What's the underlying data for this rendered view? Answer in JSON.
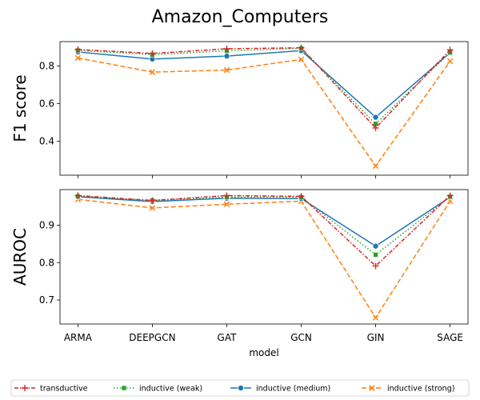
{
  "chart_data": {
    "type": "line",
    "title": "Amazon_Computers",
    "xlabel": "model",
    "categories": [
      "ARMA",
      "DEEPGCN",
      "GAT",
      "GCN",
      "GIN",
      "SAGE"
    ],
    "legend": {
      "placement": "bottom",
      "entries": [
        "transductive",
        "inductive (weak)",
        "inductive (medium)",
        "inductive (strong)"
      ]
    },
    "series_styles": [
      {
        "name": "transductive",
        "color": "#d62728",
        "dash": "dash-dot",
        "marker": "plus"
      },
      {
        "name": "inductive (weak)",
        "color": "#2ca02c",
        "dash": "dotted",
        "marker": "square"
      },
      {
        "name": "inductive (medium)",
        "color": "#1f77b4",
        "dash": "solid",
        "marker": "circle"
      },
      {
        "name": "inductive (strong)",
        "color": "#ff7f0e",
        "dash": "dashed",
        "marker": "x"
      }
    ],
    "panels": [
      {
        "ylabel": "F1 score",
        "ylim": [
          0.22,
          0.93
        ],
        "yticks": [
          0.4,
          0.6,
          0.8
        ],
        "ytick_labels": [
          "0.4",
          "0.6",
          "0.8"
        ],
        "grid": false,
        "series": [
          {
            "name": "transductive",
            "values": [
              0.888,
              0.867,
              0.892,
              0.897,
              0.471,
              0.886
            ]
          },
          {
            "name": "inductive (weak)",
            "values": [
              0.883,
              0.861,
              0.881,
              0.894,
              0.493,
              0.872
            ]
          },
          {
            "name": "inductive (medium)",
            "values": [
              0.875,
              0.837,
              0.853,
              0.882,
              0.528,
              0.871
            ]
          },
          {
            "name": "inductive (strong)",
            "values": [
              0.843,
              0.768,
              0.779,
              0.835,
              0.269,
              0.826
            ]
          }
        ]
      },
      {
        "ylabel": "AUROC",
        "ylim": [
          0.636,
          0.995
        ],
        "yticks": [
          0.7,
          0.8,
          0.9
        ],
        "ytick_labels": [
          "0.7",
          "0.8",
          "0.9"
        ],
        "grid": false,
        "series": [
          {
            "name": "transductive",
            "values": [
              0.979,
              0.966,
              0.979,
              0.977,
              0.791,
              0.979
            ]
          },
          {
            "name": "inductive (weak)",
            "values": [
              0.977,
              0.966,
              0.975,
              0.975,
              0.821,
              0.976
            ]
          },
          {
            "name": "inductive (medium)",
            "values": [
              0.976,
              0.963,
              0.972,
              0.971,
              0.844,
              0.975
            ]
          },
          {
            "name": "inductive (strong)",
            "values": [
              0.969,
              0.946,
              0.956,
              0.964,
              0.653,
              0.964
            ]
          }
        ]
      }
    ]
  }
}
